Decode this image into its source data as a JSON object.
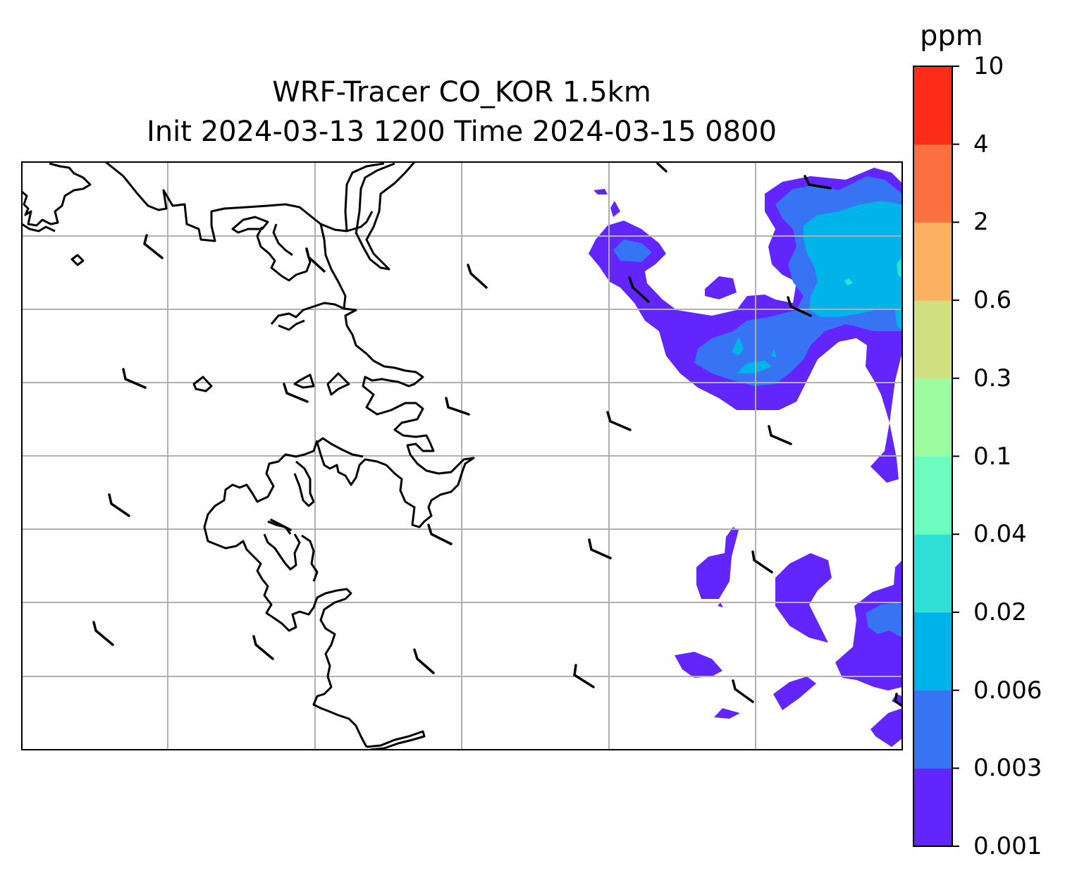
{
  "title": {
    "line1": "WRF-Tracer CO_KOR 1.5km",
    "line2": "Init 2024-03-13 1200 Time 2024-03-15 0800"
  },
  "colorbar": {
    "unit": "ppm",
    "levels": [
      "0.001",
      "0.003",
      "0.006",
      "0.02",
      "0.04",
      "0.1",
      "0.3",
      "0.6",
      "2",
      "4",
      "10"
    ],
    "colors": [
      "#6226fc",
      "#3674f3",
      "#00b4ea",
      "#2ee0d5",
      "#6cfcc0",
      "#9cfca0",
      "#d0e080",
      "#fcb062",
      "#fc7040",
      "#fc2c18"
    ]
  },
  "map": {
    "coastline_color": "#000000",
    "gridline_color": "#b0b0b0",
    "frame_color": "#000000",
    "grid": true,
    "wind_barbs": true
  }
}
